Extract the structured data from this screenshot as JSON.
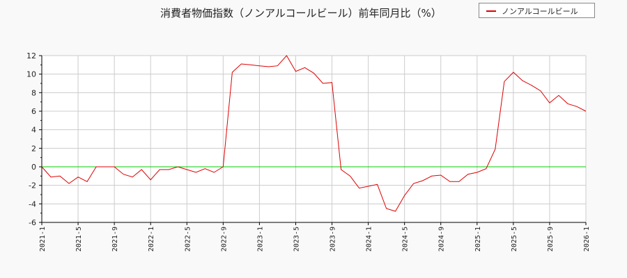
{
  "title": "消費者物価指数（ノンアルコールビール）前年同月比（%）",
  "legend": {
    "label": "ノンアルコールビール",
    "color": "#dd0000"
  },
  "colors": {
    "series": "#dd0000",
    "zero_line": "#00cc00",
    "grid": "#cccccc",
    "background": "#f9f9f9",
    "plot_bg": "#ffffff"
  },
  "chart_data": {
    "type": "line",
    "title": "消費者物価指数（ノンアルコールビール）前年同月比（%）",
    "xlabel": "",
    "ylabel": "",
    "ylim": [
      -6,
      12
    ],
    "yticks": [
      -6,
      -4,
      -2,
      0,
      2,
      4,
      6,
      8,
      10,
      12
    ],
    "xticks": [
      "2021-1",
      "2021-5",
      "2021-9",
      "2022-1",
      "2022-5",
      "2022-9",
      "2023-1",
      "2023-5",
      "2023-9",
      "2024-1",
      "2024-5",
      "2024-9",
      "2025-1",
      "2025-5",
      "2025-9",
      "2026-1"
    ],
    "grid": true,
    "legend_position": "top-right",
    "x": [
      "2021-1",
      "2021-2",
      "2021-3",
      "2021-4",
      "2021-5",
      "2021-6",
      "2021-7",
      "2021-8",
      "2021-9",
      "2021-10",
      "2021-11",
      "2021-12",
      "2022-1",
      "2022-2",
      "2022-3",
      "2022-4",
      "2022-5",
      "2022-6",
      "2022-7",
      "2022-8",
      "2022-9",
      "2022-10",
      "2022-11",
      "2022-12",
      "2023-1",
      "2023-2",
      "2023-3",
      "2023-4",
      "2023-5",
      "2023-6",
      "2023-7",
      "2023-8",
      "2023-9",
      "2023-10",
      "2023-11",
      "2023-12",
      "2024-1",
      "2024-2",
      "2024-3",
      "2024-4",
      "2024-5",
      "2024-6",
      "2024-7",
      "2024-8",
      "2024-9",
      "2024-10",
      "2024-11",
      "2024-12",
      "2025-1",
      "2025-2",
      "2025-3",
      "2025-4",
      "2025-5",
      "2025-6",
      "2025-7",
      "2025-8",
      "2025-9",
      "2025-10",
      "2025-11",
      "2025-12",
      "2026-1"
    ],
    "series": [
      {
        "name": "ノンアルコールビール",
        "values": [
          0,
          -1.1,
          -1.0,
          -1.8,
          -1.1,
          -1.6,
          0,
          0,
          0,
          -0.8,
          -1.1,
          -0.3,
          -1.4,
          -0.3,
          -0.3,
          0,
          -0.3,
          -0.6,
          -0.2,
          -0.6,
          0,
          10.2,
          11.1,
          11.0,
          10.9,
          10.8,
          10.9,
          12.0,
          10.3,
          10.7,
          10.1,
          9.0,
          9.1,
          -0.3,
          -1.0,
          -2.3,
          -2.1,
          -1.9,
          -4.5,
          -4.8,
          -3.1,
          -1.8,
          -1.5,
          -1.0,
          -0.9,
          -1.6,
          -1.6,
          -0.8,
          -0.6,
          -0.2,
          1.9,
          9.2,
          10.2,
          9.3,
          8.8,
          8.2,
          6.9,
          7.7,
          6.8,
          6.5,
          6.0
        ]
      }
    ],
    "reference_lines": [
      {
        "y": 0,
        "color": "#00cc00"
      }
    ]
  }
}
